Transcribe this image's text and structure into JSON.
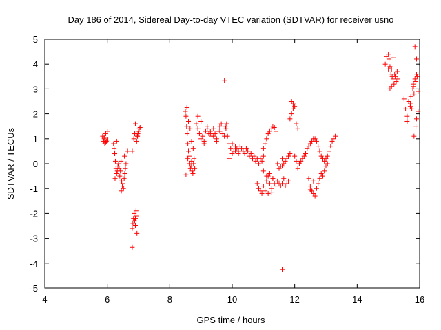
{
  "chart_data": {
    "type": "scatter",
    "title": "Day 186 of 2014, Sidereal Day-to-day VTEC variation (SDTVAR) for receiver usno",
    "xlabel": "GPS time / hours",
    "ylabel": "SDTVAR / TECUs",
    "xlim": [
      4,
      16
    ],
    "ylim": [
      -5,
      5
    ],
    "xticks": [
      4,
      6,
      8,
      10,
      12,
      14,
      16
    ],
    "yticks": [
      -5,
      -4,
      -3,
      -2,
      -1,
      0,
      1,
      2,
      3,
      4,
      5
    ],
    "xtick_labels": [
      "4",
      "6",
      "8",
      "10",
      "12",
      "14",
      "16"
    ],
    "ytick_labels": [
      "-5",
      "-4",
      "-3",
      "-2",
      "-1",
      "0",
      "1",
      "2",
      "3",
      "4",
      "5"
    ],
    "marker": "+",
    "color": "#ff0000",
    "grid": false,
    "series": [
      {
        "name": "SDTVAR",
        "x": [
          5.85,
          5.88,
          5.9,
          5.92,
          5.95,
          5.97,
          6.0,
          6.02,
          5.9,
          5.95,
          6.2,
          6.22,
          6.24,
          6.26,
          6.28,
          6.3,
          6.32,
          6.34,
          6.36,
          6.38,
          6.4,
          6.42,
          6.44,
          6.46,
          6.48,
          6.5,
          6.52,
          6.54,
          6.56,
          6.58,
          6.6,
          6.25,
          6.3,
          6.45,
          6.55,
          6.65,
          6.8,
          6.82,
          6.84,
          6.86,
          6.88,
          6.9,
          6.92,
          6.94,
          6.96,
          6.98,
          7.0,
          7.02,
          7.05,
          6.85,
          6.88,
          6.9,
          6.92,
          6.95,
          6.97,
          6.9,
          6.8,
          8.5,
          8.52,
          8.54,
          8.56,
          8.58,
          8.6,
          8.62,
          8.64,
          8.66,
          8.68,
          8.7,
          8.72,
          8.74,
          8.76,
          8.78,
          8.8,
          8.55,
          8.6,
          8.65,
          8.7,
          8.75,
          8.52,
          8.58,
          8.85,
          8.9,
          8.95,
          9.0,
          9.05,
          9.1,
          9.15,
          9.2,
          9.25,
          9.3,
          9.35,
          9.4,
          9.45,
          9.5,
          9.55,
          9.6,
          9.65,
          9.7,
          8.9,
          9.0,
          9.1,
          9.2,
          9.3,
          9.4,
          9.5,
          9.6,
          9.75,
          9.78,
          9.8,
          9.85,
          9.9,
          9.95,
          10.0,
          10.05,
          10.1,
          10.15,
          10.2,
          10.25,
          10.3,
          10.35,
          10.4,
          10.45,
          10.5,
          10.55,
          10.6,
          10.65,
          10.7,
          10.75,
          10.8,
          10.85,
          10.9,
          10.95,
          11.0,
          9.82,
          9.9,
          10.0,
          10.1,
          10.2,
          10.8,
          10.85,
          10.9,
          10.95,
          11.0,
          11.05,
          11.1,
          11.15,
          11.2,
          11.25,
          11.3,
          11.35,
          11.4,
          11.45,
          11.5,
          11.55,
          11.6,
          11.65,
          11.7,
          11.75,
          11.8,
          11.0,
          11.1,
          11.2,
          11.3,
          11.15,
          11.25,
          11.0,
          11.05,
          11.1,
          11.15,
          11.2,
          11.25,
          11.3,
          11.35,
          11.4,
          11.45,
          11.5,
          11.55,
          11.6,
          11.65,
          11.7,
          11.75,
          11.8,
          11.85,
          11.9,
          11.95,
          12.0,
          12.05,
          12.1,
          11.85,
          11.9,
          11.95,
          11.6,
          12.0,
          12.05,
          12.1,
          12.15,
          12.2,
          12.25,
          12.3,
          12.35,
          12.4,
          12.45,
          12.5,
          12.55,
          12.6,
          12.65,
          12.7,
          12.75,
          12.8,
          12.85,
          12.9,
          12.95,
          13.0,
          13.05,
          13.1,
          13.15,
          13.2,
          13.25,
          13.3,
          12.45,
          12.5,
          12.55,
          12.6,
          12.65,
          12.7,
          12.75,
          12.8,
          12.85,
          12.9,
          12.95,
          13.0,
          13.05,
          12.5,
          12.6,
          14.9,
          14.95,
          15.0,
          15.02,
          15.05,
          15.08,
          15.1,
          15.12,
          15.15,
          15.18,
          15.2,
          15.22,
          15.25,
          15.28,
          15.3,
          15.0,
          15.05,
          15.1,
          15.15,
          15.5,
          15.55,
          15.6,
          15.65,
          15.7,
          15.72,
          15.75,
          15.78,
          15.8,
          15.82,
          15.85,
          15.88,
          15.9,
          15.92,
          15.95,
          15.6,
          15.7,
          15.8,
          15.85,
          15.9,
          15.95,
          15.82,
          15.88,
          15.9,
          11.6,
          9.75,
          6.8
        ],
        "y": [
          1.1,
          0.9,
          1.0,
          0.8,
          1.2,
          0.9,
          1.3,
          0.95,
          1.05,
          0.85,
          0.8,
          0.6,
          0.4,
          0.1,
          -0.2,
          -0.4,
          -0.3,
          -0.1,
          0.0,
          -0.2,
          -0.5,
          -0.3,
          0.1,
          -0.7,
          -0.9,
          -0.8,
          -1.0,
          -0.6,
          -0.4,
          -0.2,
          0.0,
          -0.6,
          0.9,
          -1.1,
          0.3,
          0.5,
          -2.6,
          -2.4,
          -2.2,
          -2.0,
          -2.3,
          -2.5,
          -2.1,
          0.9,
          1.1,
          1.2,
          1.3,
          1.4,
          1.45,
          1.0,
          1.2,
          1.6,
          -1.9,
          -2.8,
          1.1,
          -2.2,
          -3.35,
          2.1,
          1.9,
          1.5,
          1.2,
          0.8,
          0.5,
          0.3,
          0.0,
          -0.2,
          -0.1,
          0.1,
          -0.3,
          -0.4,
          0.0,
          0.2,
          -0.2,
          2.25,
          1.7,
          1.4,
          0.9,
          0.6,
          -0.45,
          0.2,
          1.6,
          1.4,
          1.2,
          1.0,
          1.1,
          0.9,
          1.3,
          1.5,
          1.2,
          1.3,
          1.1,
          1.4,
          1.2,
          1.0,
          1.3,
          1.5,
          1.6,
          1.2,
          1.9,
          1.7,
          0.8,
          1.4,
          1.2,
          1.1,
          0.9,
          1.3,
          1.1,
          1.5,
          1.4,
          1.1,
          0.8,
          0.6,
          0.4,
          0.5,
          0.7,
          0.6,
          0.5,
          0.7,
          0.6,
          0.5,
          0.4,
          0.6,
          0.5,
          0.3,
          0.4,
          0.2,
          0.3,
          0.1,
          0.2,
          0.0,
          0.2,
          0.1,
          0.3,
          1.6,
          0.2,
          0.8,
          0.5,
          0.4,
          -0.8,
          -1.0,
          -1.1,
          -1.2,
          -0.9,
          -1.1,
          -0.7,
          -0.5,
          -0.8,
          -1.0,
          -0.6,
          -0.8,
          -0.9,
          -0.7,
          -0.8,
          -0.9,
          -0.8,
          -0.6,
          -0.9,
          -0.8,
          -0.7,
          -0.3,
          -0.5,
          -0.4,
          -0.6,
          -1.2,
          -1.15,
          0.6,
          0.8,
          1.0,
          1.2,
          1.3,
          1.4,
          1.5,
          1.45,
          1.3,
          0.0,
          -0.2,
          -0.1,
          0.2,
          0.0,
          0.1,
          0.2,
          0.3,
          0.4,
          2.0,
          2.4,
          2.3,
          1.6,
          1.4,
          1.8,
          2.5,
          2.2,
          -0.1,
          0.3,
          0.1,
          -0.2,
          0.0,
          0.1,
          0.2,
          0.3,
          0.4,
          0.6,
          0.7,
          0.8,
          0.9,
          1.0,
          1.0,
          0.9,
          0.7,
          0.5,
          0.3,
          0.2,
          0.1,
          0.2,
          0.3,
          0.5,
          0.7,
          0.9,
          1.0,
          1.1,
          -0.6,
          -0.9,
          -1.1,
          -1.2,
          -1.3,
          -1.0,
          -0.8,
          -0.6,
          -0.4,
          -0.5,
          -0.3,
          -0.1,
          0.0,
          -1.05,
          -0.7,
          4.0,
          4.3,
          4.4,
          4.2,
          3.9,
          3.6,
          3.8,
          3.5,
          3.4,
          3.2,
          3.6,
          3.5,
          3.3,
          3.7,
          3.4,
          3.8,
          3.0,
          3.1,
          4.25,
          2.6,
          2.2,
          1.9,
          2.5,
          2.4,
          2.7,
          2.2,
          3.0,
          3.1,
          2.8,
          3.4,
          3.3,
          3.6,
          3.5,
          2.9,
          1.7,
          2.3,
          3.2,
          4.7,
          4.2,
          2.1,
          1.1,
          1.5,
          1.8,
          -4.25,
          3.35,
          0.5
        ]
      }
    ]
  }
}
